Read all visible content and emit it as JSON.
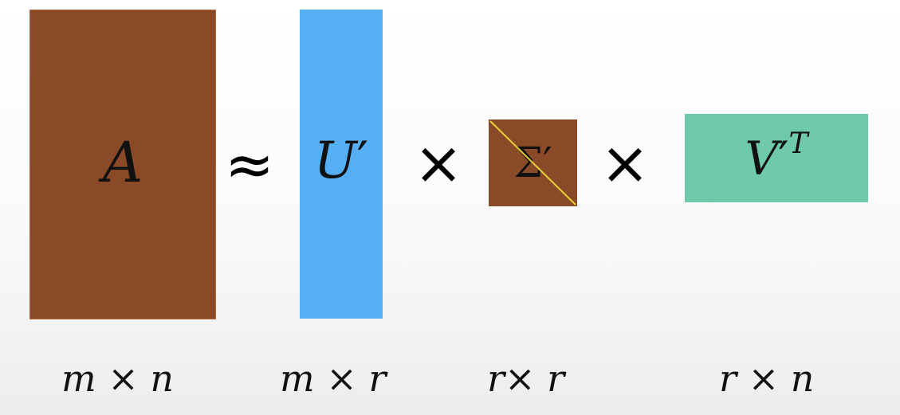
{
  "colors": {
    "matrix_a": "#8b4a27",
    "matrix_u": "#55aff2",
    "matrix_sigma": "#8b4a27",
    "matrix_v": "#6fcaaa",
    "diagonal": "#e8d23a"
  },
  "matrices": {
    "a": {
      "symbol": "A",
      "dims": "m × n"
    },
    "u": {
      "symbol": "U",
      "prime": "′",
      "dims": "m × r"
    },
    "sigma": {
      "symbol": "Σ",
      "prime": "′",
      "dims": "r× r"
    },
    "v": {
      "symbol": "V",
      "prime": "′",
      "superscript": "T",
      "dims": "r × n"
    }
  },
  "operators": {
    "approx": "≈",
    "times": "×"
  }
}
